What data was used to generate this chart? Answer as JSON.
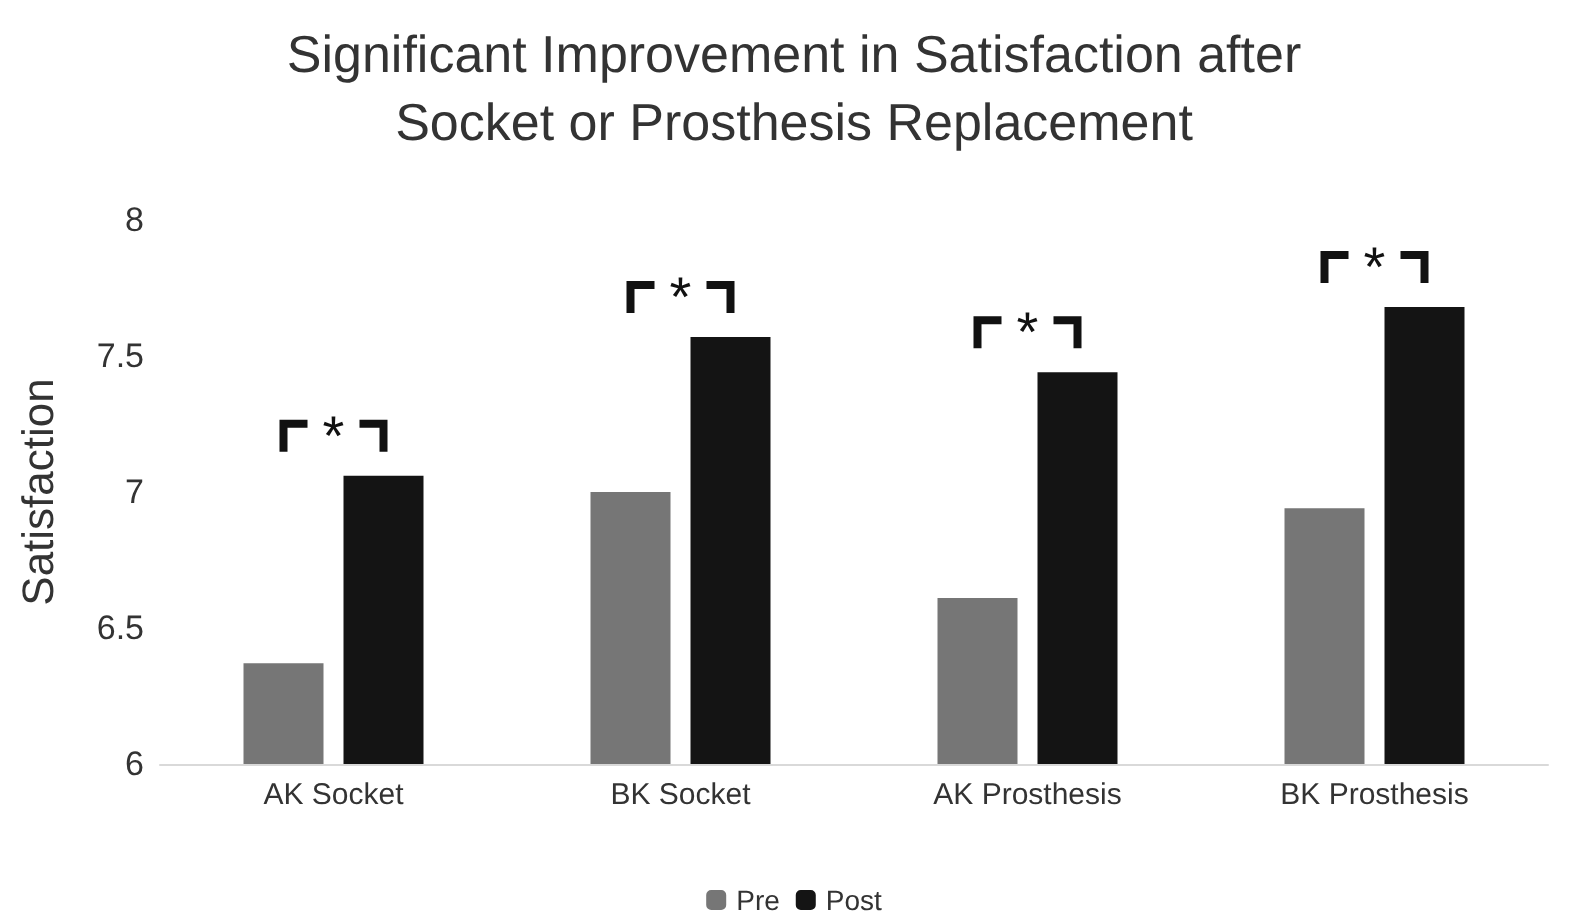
{
  "chart_data": {
    "type": "bar",
    "title": "Significant Improvement in Satisfaction after\nSocket or Prosthesis Replacement",
    "ylabel": "Satisfaction",
    "categories": [
      "AK Socket",
      "BK Socket",
      "AK Prosthesis",
      "BK Prosthesis"
    ],
    "series": [
      {
        "name": "Pre",
        "color": "#767676",
        "values": [
          6.37,
          7.0,
          6.61,
          6.94
        ]
      },
      {
        "name": "Post",
        "color": "#141414",
        "values": [
          7.06,
          7.57,
          7.44,
          7.68
        ]
      }
    ],
    "ylim": [
      6,
      8
    ],
    "yticks": [
      6,
      6.5,
      7,
      7.5,
      8
    ],
    "grid": false,
    "legend": "bottom",
    "annotations": [
      "*",
      "*",
      "*",
      "*"
    ]
  }
}
